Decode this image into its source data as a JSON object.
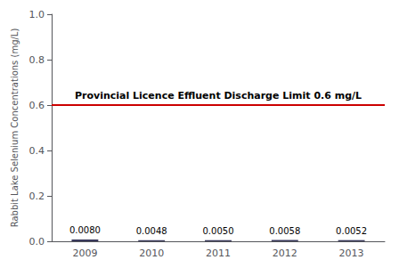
{
  "chart_data": {
    "type": "bar",
    "categories": [
      "2009",
      "2010",
      "2011",
      "2012",
      "2013"
    ],
    "values": [
      0.008,
      0.0048,
      0.005,
      0.0058,
      0.0052
    ],
    "value_labels": [
      "0.0080",
      "0.0048",
      "0.0050",
      "0.0058",
      "0.0052"
    ],
    "data_labels": true,
    "color": "#3a3a5c",
    "ylabel": "Rabbit Lake Selenium Concentrations (mg/L)",
    "ylim": [
      0.0,
      1.0
    ],
    "yticks": [
      {
        "value": 0.0,
        "label": "0.0"
      },
      0.2,
      0.4,
      0.6,
      0.8,
      {
        "value": 1.0,
        "label": "1.0"
      }
    ],
    "grid": false,
    "annotations": [
      {
        "type": "hline",
        "y": 0.6,
        "color": "#cc0000",
        "text": "Provincial Licence Effluent Discharge Limit 0.6 mg/L"
      }
    ]
  }
}
